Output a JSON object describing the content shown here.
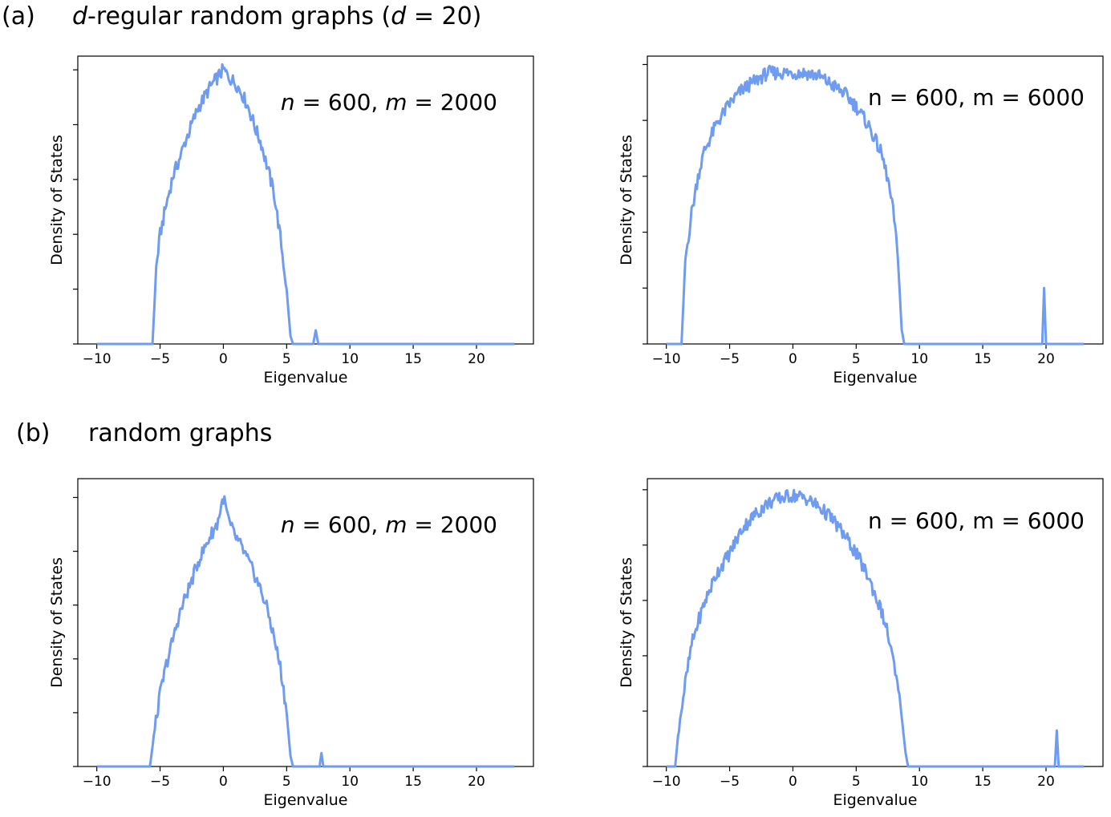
{
  "panels": [
    {
      "letter": "(a)",
      "title_parts": [
        {
          "text": "d",
          "italic": true
        },
        {
          "text": "-regular random graphs (",
          "italic": false
        },
        {
          "text": "d",
          "italic": true
        },
        {
          "text": " = 20)",
          "italic": false
        }
      ]
    },
    {
      "letter": "(b)",
      "title_parts": [
        {
          "text": "random graphs",
          "italic": false
        }
      ]
    }
  ],
  "line_color": "#6f9cf0",
  "chart_data": [
    {
      "type": "line",
      "panel": "(a)",
      "xlabel": "Eigenvalue",
      "ylabel": "Density of States",
      "xticks": [
        -10,
        -5,
        0,
        5,
        10,
        15,
        20
      ],
      "xlim": [
        -11.5,
        24.5
      ],
      "ylim": [
        0,
        1.05
      ],
      "yticks": [
        0,
        0.2,
        0.4,
        0.6,
        0.8,
        1.0
      ],
      "annotation": [
        {
          "text": "n",
          "italic": true
        },
        {
          "text": " = 600, ",
          "italic": false
        },
        {
          "text": "m",
          "italic": true
        },
        {
          "text": " = 2000",
          "italic": false
        }
      ],
      "series": [
        {
          "values": [
            [
              -10,
              0
            ],
            [
              -5.6,
              0
            ],
            [
              -5.3,
              0.28
            ],
            [
              -5,
              0.4
            ],
            [
              -4.5,
              0.51
            ],
            [
              -4,
              0.61
            ],
            [
              -3.5,
              0.67
            ],
            [
              -3,
              0.74
            ],
            [
              -2.5,
              0.8
            ],
            [
              -2,
              0.86
            ],
            [
              -1.5,
              0.9
            ],
            [
              -1,
              0.94
            ],
            [
              -0.5,
              0.97
            ],
            [
              0,
              1.0
            ],
            [
              0.5,
              0.97
            ],
            [
              1,
              0.95
            ],
            [
              1.5,
              0.91
            ],
            [
              2,
              0.86
            ],
            [
              2.5,
              0.79
            ],
            [
              3,
              0.73
            ],
            [
              3.5,
              0.64
            ],
            [
              4,
              0.55
            ],
            [
              4.5,
              0.39
            ],
            [
              5,
              0.2
            ],
            [
              5.3,
              0.03
            ],
            [
              5.5,
              0
            ],
            [
              7.1,
              0
            ],
            [
              7.3,
              0.05
            ],
            [
              7.5,
              0
            ],
            [
              23,
              0
            ]
          ]
        }
      ]
    },
    {
      "type": "line",
      "panel": "(a)",
      "xlabel": "Eigenvalue",
      "ylabel": "Density of States",
      "xticks": [
        -10,
        -5,
        0,
        5,
        10,
        15,
        20
      ],
      "xlim": [
        -11.5,
        24.5
      ],
      "ylim": [
        0,
        1.03
      ],
      "yticks": [
        0,
        0.2,
        0.4,
        0.6,
        0.8,
        1.0
      ],
      "annotation": [
        {
          "text": "n = 600, m = 6000",
          "italic": false
        }
      ],
      "series": [
        {
          "values": [
            [
              -10,
              0
            ],
            [
              -8.8,
              0
            ],
            [
              -8.5,
              0.3
            ],
            [
              -8,
              0.47
            ],
            [
              -7.5,
              0.6
            ],
            [
              -7,
              0.69
            ],
            [
              -6,
              0.79
            ],
            [
              -5,
              0.86
            ],
            [
              -4,
              0.91
            ],
            [
              -3,
              0.94
            ],
            [
              -2,
              0.97
            ],
            [
              -1,
              0.97
            ],
            [
              0,
              0.97
            ],
            [
              1,
              0.97
            ],
            [
              2,
              0.96
            ],
            [
              3,
              0.93
            ],
            [
              4,
              0.9
            ],
            [
              5,
              0.85
            ],
            [
              6,
              0.78
            ],
            [
              7,
              0.68
            ],
            [
              7.5,
              0.59
            ],
            [
              8,
              0.45
            ],
            [
              8.3,
              0.3
            ],
            [
              8.6,
              0.05
            ],
            [
              8.8,
              0
            ],
            [
              19.7,
              0
            ],
            [
              19.85,
              0.2
            ],
            [
              20,
              0
            ],
            [
              23,
              0
            ]
          ]
        }
      ]
    },
    {
      "type": "line",
      "panel": "(b)",
      "xlabel": "Eigenvalue",
      "ylabel": "Density of States",
      "xticks": [
        -10,
        -5,
        0,
        5,
        10,
        15,
        20
      ],
      "xlim": [
        -11.5,
        24.5
      ],
      "ylim": [
        0,
        1.07
      ],
      "yticks": [
        0,
        0.2,
        0.4,
        0.6,
        0.8,
        1.0
      ],
      "annotation": [
        {
          "text": "n",
          "italic": true
        },
        {
          "text": " = 600, ",
          "italic": false
        },
        {
          "text": "m",
          "italic": true
        },
        {
          "text": " = 2000",
          "italic": false
        }
      ],
      "series": [
        {
          "values": [
            [
              -10,
              0
            ],
            [
              -5.8,
              0
            ],
            [
              -5.5,
              0.11
            ],
            [
              -5,
              0.27
            ],
            [
              -4.5,
              0.38
            ],
            [
              -4,
              0.47
            ],
            [
              -3.5,
              0.56
            ],
            [
              -3,
              0.63
            ],
            [
              -2.5,
              0.69
            ],
            [
              -2,
              0.76
            ],
            [
              -1.5,
              0.81
            ],
            [
              -1,
              0.86
            ],
            [
              -0.5,
              0.9
            ],
            [
              0,
              1.0
            ],
            [
              0.5,
              0.9
            ],
            [
              1,
              0.85
            ],
            [
              1.5,
              0.81
            ],
            [
              2,
              0.76
            ],
            [
              2.5,
              0.71
            ],
            [
              3,
              0.65
            ],
            [
              3.5,
              0.58
            ],
            [
              4,
              0.48
            ],
            [
              4.5,
              0.37
            ],
            [
              5,
              0.2
            ],
            [
              5.3,
              0.04
            ],
            [
              5.5,
              0
            ],
            [
              7.6,
              0
            ],
            [
              7.75,
              0.05
            ],
            [
              7.9,
              0
            ],
            [
              23,
              0
            ]
          ]
        }
      ]
    },
    {
      "type": "line",
      "panel": "(b)",
      "xlabel": "Eigenvalue",
      "ylabel": "Density of States",
      "xticks": [
        -10,
        -5,
        0,
        5,
        10,
        15,
        20
      ],
      "xlim": [
        -11.5,
        24.5
      ],
      "ylim": [
        0,
        1.04
      ],
      "yticks": [
        0,
        0.2,
        0.4,
        0.6,
        0.8,
        1.0
      ],
      "annotation": [
        {
          "text": "n = 600, m = 6000",
          "italic": false
        }
      ],
      "series": [
        {
          "values": [
            [
              -10,
              0
            ],
            [
              -9.3,
              0
            ],
            [
              -9,
              0.15
            ],
            [
              -8.5,
              0.3
            ],
            [
              -8,
              0.44
            ],
            [
              -7.5,
              0.52
            ],
            [
              -7,
              0.59
            ],
            [
              -6,
              0.7
            ],
            [
              -5,
              0.77
            ],
            [
              -4,
              0.86
            ],
            [
              -3,
              0.91
            ],
            [
              -2,
              0.95
            ],
            [
              -1,
              0.97
            ],
            [
              0,
              0.98
            ],
            [
              1,
              0.97
            ],
            [
              2,
              0.94
            ],
            [
              3,
              0.9
            ],
            [
              4,
              0.84
            ],
            [
              5,
              0.77
            ],
            [
              6,
              0.68
            ],
            [
              7,
              0.56
            ],
            [
              7.5,
              0.48
            ],
            [
              8,
              0.36
            ],
            [
              8.5,
              0.22
            ],
            [
              8.9,
              0.05
            ],
            [
              9.1,
              0
            ],
            [
              20.7,
              0
            ],
            [
              20.85,
              0.13
            ],
            [
              21,
              0
            ],
            [
              23,
              0
            ]
          ]
        }
      ]
    }
  ]
}
